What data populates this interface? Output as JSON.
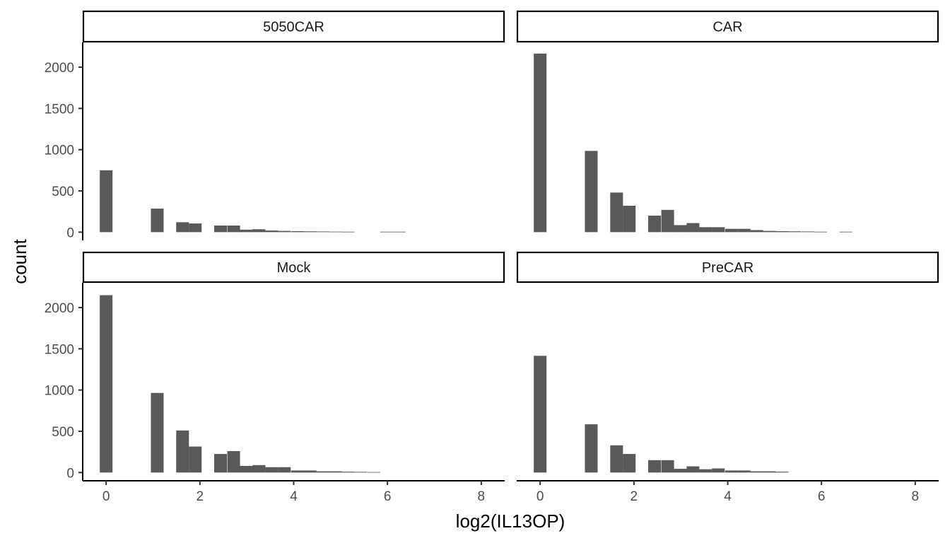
{
  "chart_data": {
    "type": "bar",
    "subtype": "faceted-histogram",
    "title": "",
    "xlabel": "log2(IL13OP)",
    "ylabel": "count",
    "xlim": [
      -0.5,
      8.5
    ],
    "ylim": [
      -100,
      2300
    ],
    "x_ticks": [
      0,
      2,
      4,
      6,
      8
    ],
    "y_ticks": [
      0,
      500,
      1000,
      1500,
      2000
    ],
    "bar_color": "#595959",
    "bin_width": 0.2715,
    "facets": [
      {
        "name": "5050CAR",
        "x": [
          0,
          1.09,
          1.63,
          1.9,
          2.44,
          2.72,
          2.99,
          3.26,
          3.53,
          3.8,
          4.08,
          4.35,
          4.62,
          4.89,
          5.16,
          5.98,
          6.25
        ],
        "values": [
          750,
          285,
          120,
          105,
          80,
          80,
          30,
          35,
          20,
          15,
          12,
          10,
          8,
          6,
          5,
          5,
          5
        ]
      },
      {
        "name": "CAR",
        "x": [
          0,
          1.09,
          1.63,
          1.9,
          2.44,
          2.72,
          2.99,
          3.26,
          3.53,
          3.8,
          4.08,
          4.35,
          4.62,
          4.89,
          5.16,
          5.43,
          5.71,
          5.98,
          6.52
        ],
        "values": [
          2165,
          985,
          480,
          320,
          200,
          270,
          85,
          110,
          60,
          60,
          40,
          40,
          25,
          15,
          12,
          10,
          8,
          5,
          5
        ]
      },
      {
        "name": "Mock",
        "x": [
          0,
          1.09,
          1.63,
          1.9,
          2.44,
          2.72,
          2.99,
          3.26,
          3.53,
          3.8,
          4.08,
          4.35,
          4.62,
          4.89,
          5.16,
          5.43,
          5.71
        ],
        "values": [
          2150,
          965,
          510,
          315,
          225,
          260,
          80,
          90,
          65,
          65,
          25,
          25,
          15,
          15,
          10,
          8,
          6
        ]
      },
      {
        "name": "PreCAR",
        "x": [
          0,
          1.09,
          1.63,
          1.9,
          2.44,
          2.72,
          2.99,
          3.26,
          3.53,
          3.8,
          4.08,
          4.35,
          4.62,
          4.89,
          5.16
        ],
        "values": [
          1415,
          585,
          330,
          225,
          150,
          150,
          45,
          75,
          40,
          50,
          25,
          25,
          15,
          15,
          10
        ]
      }
    ]
  }
}
